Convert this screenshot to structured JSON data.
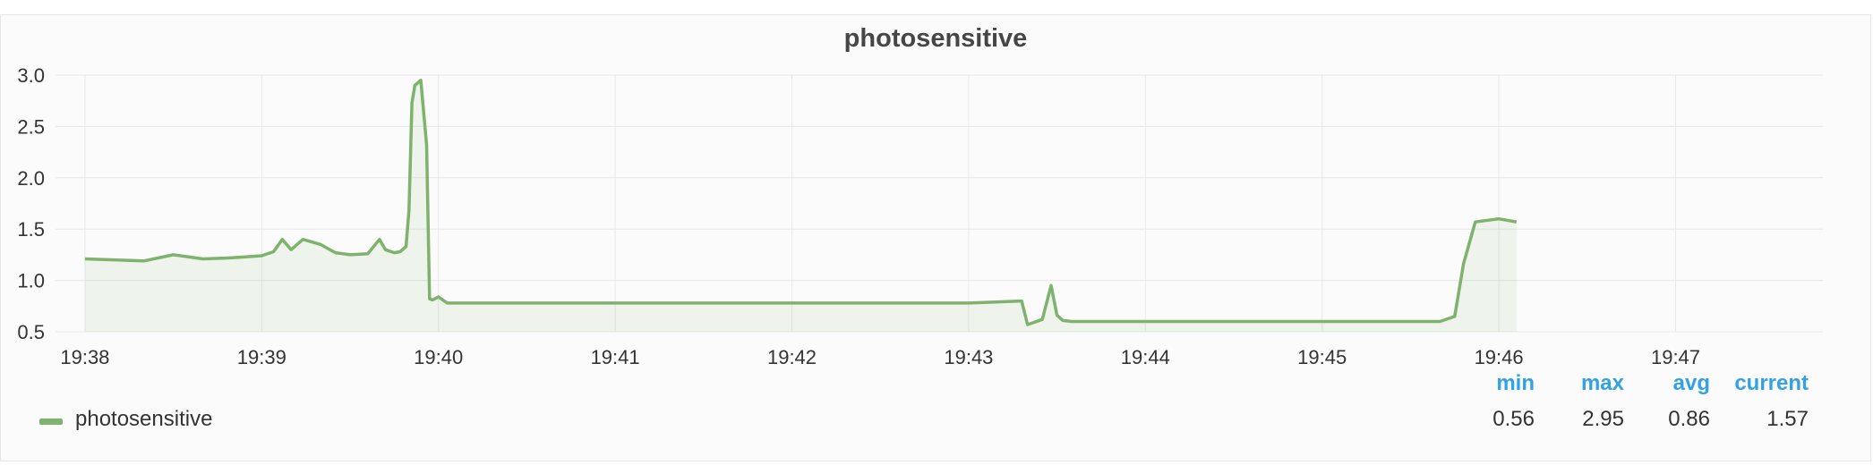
{
  "chart_data": {
    "type": "area",
    "title": "photosensitive",
    "xlabel": "",
    "ylabel": "",
    "x_ticks": [
      "19:38",
      "19:39",
      "19:40",
      "19:41",
      "19:42",
      "19:43",
      "19:44",
      "19:45",
      "19:46",
      "19:47"
    ],
    "y_ticks": [
      "0.5",
      "1.0",
      "1.5",
      "2.0",
      "2.5",
      "3.0"
    ],
    "ylim": [
      0.5,
      3.0
    ],
    "xlim_minutes": [
      "19:37:50",
      "19:47:50"
    ],
    "grid": true,
    "legend_position": "bottom",
    "series": [
      {
        "name": "photosensitive",
        "color": "#7eb26d",
        "x": [
          "19:38:00",
          "19:38:10",
          "19:38:20",
          "19:38:30",
          "19:38:40",
          "19:38:50",
          "19:39:00",
          "19:39:04",
          "19:39:07",
          "19:39:10",
          "19:39:14",
          "19:39:20",
          "19:39:25",
          "19:39:30",
          "19:39:36",
          "19:39:40",
          "19:39:42",
          "19:39:45",
          "19:39:47",
          "19:39:49",
          "19:39:50",
          "19:39:51",
          "19:39:52",
          "19:39:54",
          "19:39:56",
          "19:39:57",
          "19:39:58",
          "19:40:00",
          "19:40:03",
          "19:40:30",
          "19:41:00",
          "19:41:30",
          "19:42:00",
          "19:42:30",
          "19:43:00",
          "19:43:18",
          "19:43:20",
          "19:43:25",
          "19:43:28",
          "19:43:30",
          "19:43:32",
          "19:43:35",
          "19:44:00",
          "19:44:30",
          "19:45:00",
          "19:45:30",
          "19:45:40",
          "19:45:45",
          "19:45:48",
          "19:45:52",
          "19:46:00",
          "19:46:06"
        ],
        "values": [
          1.21,
          1.2,
          1.19,
          1.25,
          1.21,
          1.22,
          1.24,
          1.28,
          1.4,
          1.3,
          1.4,
          1.35,
          1.27,
          1.25,
          1.26,
          1.4,
          1.3,
          1.27,
          1.28,
          1.33,
          1.68,
          2.73,
          2.9,
          2.95,
          2.32,
          0.82,
          0.81,
          0.84,
          0.78,
          0.78,
          0.78,
          0.78,
          0.78,
          0.78,
          0.78,
          0.8,
          0.57,
          0.62,
          0.95,
          0.66,
          0.61,
          0.6,
          0.6,
          0.6,
          0.6,
          0.6,
          0.6,
          0.65,
          1.16,
          1.57,
          1.6,
          1.57
        ]
      }
    ]
  },
  "legend": {
    "series_label": "photosensitive",
    "stats": [
      {
        "label": "min",
        "value": "0.56"
      },
      {
        "label": "max",
        "value": "2.95"
      },
      {
        "label": "avg",
        "value": "0.86"
      },
      {
        "label": "current",
        "value": "1.57"
      }
    ]
  }
}
